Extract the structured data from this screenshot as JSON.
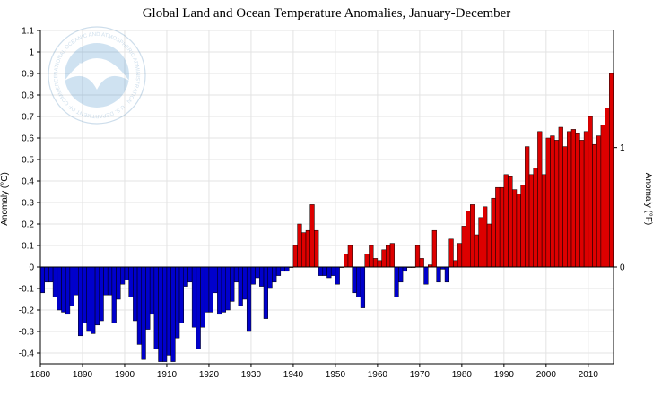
{
  "chart_data": {
    "type": "bar",
    "title": "Global Land and Ocean Temperature Anomalies, January-December",
    "ylabel_left": "Anomaly (°C)",
    "ylabel_right": "Anomaly (°F)",
    "xlabel": "",
    "xlim": [
      1880,
      2015
    ],
    "ylim": [
      -0.45,
      1.1
    ],
    "y_ticks": [
      -0.4,
      -0.3,
      -0.2,
      -0.1,
      0,
      0.1,
      0.2,
      0.3,
      0.4,
      0.5,
      0.6,
      0.7,
      0.8,
      0.9,
      1,
      1.1
    ],
    "y_tick_labels": [
      "-0.4",
      "-0.3",
      "-0.2",
      "-0.1",
      "0",
      "0.1",
      "0.2",
      "0.3",
      "0.4",
      "0.5",
      "0.6",
      "0.7",
      "0.8",
      "0.9",
      "1",
      "1.1"
    ],
    "y_right_ticks_f": [
      0,
      1
    ],
    "y_right_tick_labels": [
      "0",
      "1"
    ],
    "x_ticks": [
      1880,
      1890,
      1900,
      1910,
      1920,
      1930,
      1940,
      1950,
      1960,
      1970,
      1980,
      1990,
      2000,
      2010
    ],
    "x_tick_labels": [
      "1880",
      "1890",
      "1900",
      "1910",
      "1920",
      "1930",
      "1940",
      "1950",
      "1960",
      "1970",
      "1980",
      "1990",
      "2000",
      "2010"
    ],
    "positive_color": "#dd0000",
    "negative_color": "#0000cc",
    "grid": true,
    "start_year": 1880,
    "values": [
      -0.12,
      -0.07,
      -0.07,
      -0.14,
      -0.2,
      -0.21,
      -0.22,
      -0.18,
      -0.13,
      -0.32,
      -0.26,
      -0.3,
      -0.31,
      -0.27,
      -0.25,
      -0.13,
      -0.13,
      -0.26,
      -0.15,
      -0.08,
      -0.06,
      -0.14,
      -0.25,
      -0.36,
      -0.43,
      -0.29,
      -0.22,
      -0.38,
      -0.44,
      -0.44,
      -0.41,
      -0.44,
      -0.33,
      -0.26,
      -0.09,
      -0.07,
      -0.28,
      -0.38,
      -0.28,
      -0.21,
      -0.21,
      -0.12,
      -0.22,
      -0.21,
      -0.2,
      -0.16,
      -0.07,
      -0.18,
      -0.15,
      -0.3,
      -0.08,
      -0.05,
      -0.09,
      -0.24,
      -0.1,
      -0.07,
      -0.04,
      -0.02,
      -0.02,
      0.0,
      0.1,
      0.2,
      0.16,
      0.17,
      0.29,
      0.17,
      -0.04,
      -0.04,
      -0.05,
      -0.04,
      -0.08,
      0.0,
      0.06,
      0.1,
      -0.12,
      -0.14,
      -0.19,
      0.06,
      0.1,
      0.04,
      0.03,
      0.08,
      0.1,
      0.11,
      -0.14,
      -0.07,
      -0.02,
      -0.0,
      0.0,
      0.1,
      0.04,
      -0.08,
      0.01,
      0.17,
      -0.07,
      -0.01,
      -0.07,
      0.13,
      0.03,
      0.11,
      0.19,
      0.26,
      0.29,
      0.15,
      0.23,
      0.28,
      0.2,
      0.32,
      0.37,
      0.37,
      0.43,
      0.42,
      0.36,
      0.34,
      0.38,
      0.56,
      0.43,
      0.46,
      0.63,
      0.43,
      0.6,
      0.61,
      0.59,
      0.65,
      0.56,
      0.63,
      0.64,
      0.62,
      0.59,
      0.63,
      0.7,
      0.57,
      0.61,
      0.66,
      0.74,
      0.9
    ]
  },
  "watermark": {
    "acronym": "NOAA",
    "ring_text": "NATIONAL OCEANIC AND ATMOSPHERIC ADMINISTRATION · U.S. DEPARTMENT OF COMMERCE"
  }
}
